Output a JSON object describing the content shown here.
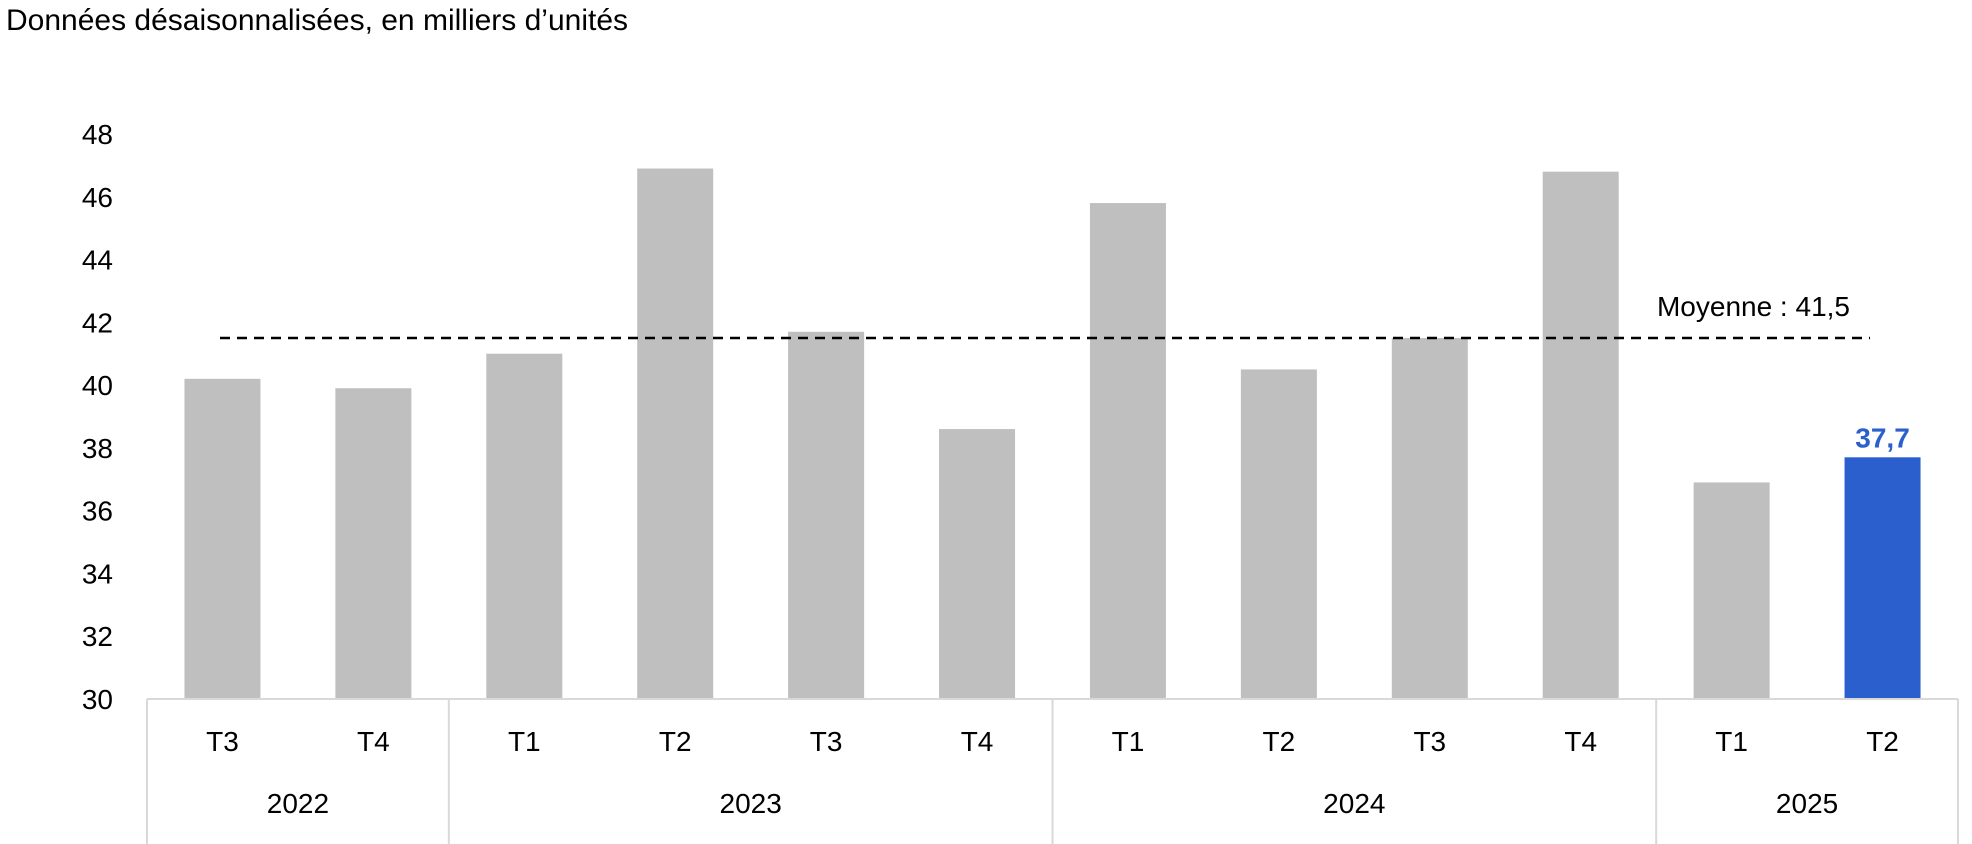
{
  "subtitle": "Données désaisonnalisées, en milliers d’unités",
  "chart_data": {
    "type": "bar",
    "categories": [
      "T3",
      "T4",
      "T1",
      "T2",
      "T3",
      "T4",
      "T1",
      "T2",
      "T3",
      "T4",
      "T1",
      "T2"
    ],
    "groups": [
      {
        "label": "2022",
        "count": 2
      },
      {
        "label": "2023",
        "count": 4
      },
      {
        "label": "2024",
        "count": 4
      },
      {
        "label": "2025",
        "count": 2
      }
    ],
    "values": [
      40.2,
      39.9,
      41.0,
      46.9,
      41.7,
      38.6,
      45.8,
      40.5,
      41.5,
      46.8,
      36.9,
      37.7
    ],
    "highlight_index": 11,
    "highlight_label": "37,7",
    "ylim": [
      30,
      48
    ],
    "yticks": [
      "30",
      "32",
      "34",
      "36",
      "38",
      "40",
      "42",
      "44",
      "46",
      "48"
    ],
    "average": {
      "value": 41.5,
      "label": "Moyenne : 41,5"
    },
    "grid": false,
    "colors": {
      "bar": "#bfbfbf",
      "highlight": "#2b5fce",
      "highlight_label": "#2b5fce",
      "axis": "#d9d9d9",
      "average_line": "#000000"
    }
  }
}
